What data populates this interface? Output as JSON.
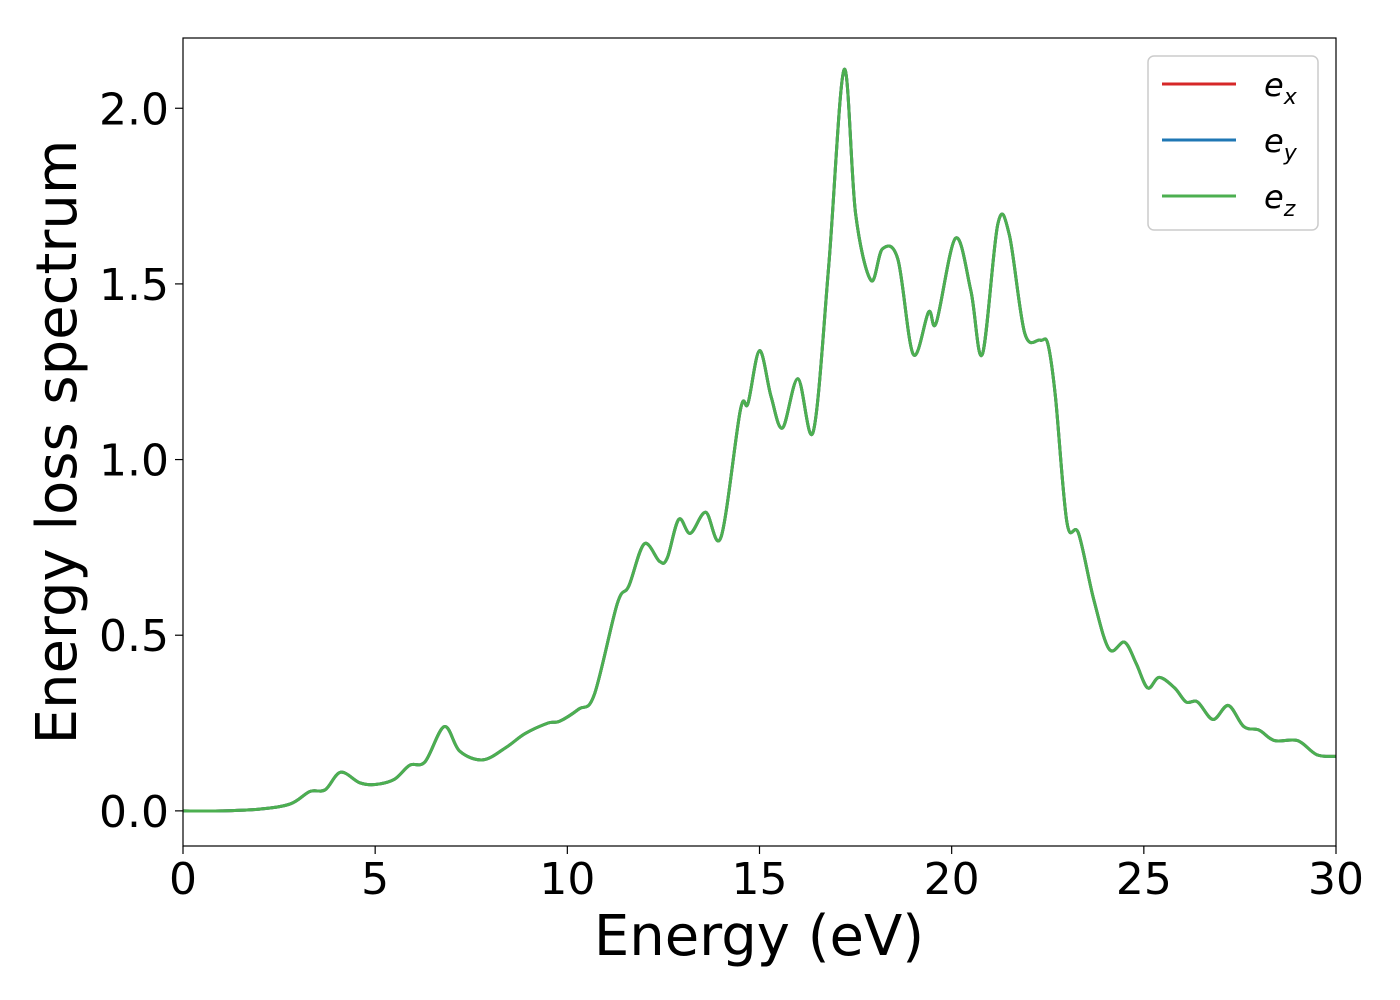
{
  "chart_data": {
    "type": "line",
    "title": "",
    "xlabel": "Energy (eV)",
    "ylabel": "Energy loss spectrum",
    "xlim": [
      0,
      30
    ],
    "ylim": [
      -0.1,
      2.2
    ],
    "xticks": [
      "0",
      "5",
      "10",
      "15",
      "20",
      "25",
      "30"
    ],
    "yticks": [
      "0.0",
      "0.5",
      "1.0",
      "1.5",
      "2.0"
    ],
    "grid": false,
    "legend_position": "top-right",
    "x": [
      0,
      1,
      2,
      2.8,
      3.3,
      3.7,
      4.1,
      4.6,
      5.0,
      5.5,
      5.9,
      6.3,
      6.8,
      7.2,
      7.8,
      8.4,
      8.9,
      9.5,
      9.8,
      10.3,
      10.7,
      11.3,
      11.6,
      12.0,
      12.4,
      12.6,
      12.9,
      13.2,
      13.6,
      14.0,
      14.5,
      14.7,
      15.0,
      15.3,
      15.6,
      16.0,
      16.4,
      16.8,
      17.2,
      17.5,
      17.9,
      18.2,
      18.6,
      19.0,
      19.4,
      19.6,
      20.1,
      20.5,
      20.8,
      21.2,
      21.5,
      21.9,
      22.3,
      22.5,
      22.7,
      23.0,
      23.3,
      23.7,
      24.1,
      24.5,
      24.8,
      25.1,
      25.4,
      25.8,
      26.1,
      26.4,
      26.8,
      27.2,
      27.6,
      28.0,
      28.4,
      29.0,
      29.5,
      30.0
    ],
    "series": [
      {
        "name": "e",
        "subscript": "x",
        "color": "#d62728",
        "values": [
          0.0,
          0.0,
          0.005,
          0.02,
          0.055,
          0.06,
          0.11,
          0.08,
          0.075,
          0.09,
          0.13,
          0.14,
          0.24,
          0.17,
          0.145,
          0.18,
          0.22,
          0.25,
          0.255,
          0.29,
          0.33,
          0.59,
          0.64,
          0.76,
          0.71,
          0.72,
          0.83,
          0.79,
          0.85,
          0.78,
          1.14,
          1.16,
          1.31,
          1.18,
          1.09,
          1.23,
          1.08,
          1.55,
          2.11,
          1.7,
          1.51,
          1.6,
          1.57,
          1.3,
          1.42,
          1.39,
          1.63,
          1.48,
          1.3,
          1.67,
          1.64,
          1.36,
          1.34,
          1.33,
          1.18,
          0.82,
          0.79,
          0.6,
          0.46,
          0.48,
          0.42,
          0.35,
          0.38,
          0.35,
          0.31,
          0.31,
          0.26,
          0.3,
          0.24,
          0.23,
          0.2,
          0.2,
          0.16,
          0.155
        ]
      },
      {
        "name": "e",
        "subscript": "y",
        "color": "#1f77b4",
        "values": [
          0.0,
          0.0,
          0.005,
          0.02,
          0.055,
          0.06,
          0.11,
          0.08,
          0.075,
          0.09,
          0.13,
          0.14,
          0.24,
          0.17,
          0.145,
          0.18,
          0.22,
          0.25,
          0.255,
          0.29,
          0.33,
          0.59,
          0.64,
          0.76,
          0.71,
          0.72,
          0.83,
          0.79,
          0.85,
          0.78,
          1.14,
          1.16,
          1.31,
          1.18,
          1.09,
          1.23,
          1.08,
          1.55,
          2.11,
          1.7,
          1.51,
          1.6,
          1.57,
          1.3,
          1.42,
          1.39,
          1.63,
          1.48,
          1.3,
          1.67,
          1.64,
          1.36,
          1.34,
          1.33,
          1.18,
          0.82,
          0.79,
          0.6,
          0.46,
          0.48,
          0.42,
          0.35,
          0.38,
          0.35,
          0.31,
          0.31,
          0.26,
          0.3,
          0.24,
          0.23,
          0.2,
          0.2,
          0.16,
          0.155
        ]
      },
      {
        "name": "e",
        "subscript": "z",
        "color": "#4caf50",
        "values": [
          0.0,
          0.0,
          0.005,
          0.02,
          0.055,
          0.06,
          0.11,
          0.08,
          0.075,
          0.09,
          0.13,
          0.14,
          0.24,
          0.17,
          0.145,
          0.18,
          0.22,
          0.25,
          0.255,
          0.29,
          0.33,
          0.59,
          0.64,
          0.76,
          0.71,
          0.72,
          0.83,
          0.79,
          0.85,
          0.78,
          1.14,
          1.16,
          1.31,
          1.18,
          1.09,
          1.23,
          1.08,
          1.55,
          2.11,
          1.7,
          1.51,
          1.6,
          1.57,
          1.3,
          1.42,
          1.39,
          1.63,
          1.48,
          1.3,
          1.67,
          1.64,
          1.36,
          1.34,
          1.33,
          1.18,
          0.82,
          0.79,
          0.6,
          0.46,
          0.48,
          0.42,
          0.35,
          0.38,
          0.35,
          0.31,
          0.31,
          0.26,
          0.3,
          0.24,
          0.23,
          0.2,
          0.2,
          0.16,
          0.155
        ]
      }
    ]
  }
}
